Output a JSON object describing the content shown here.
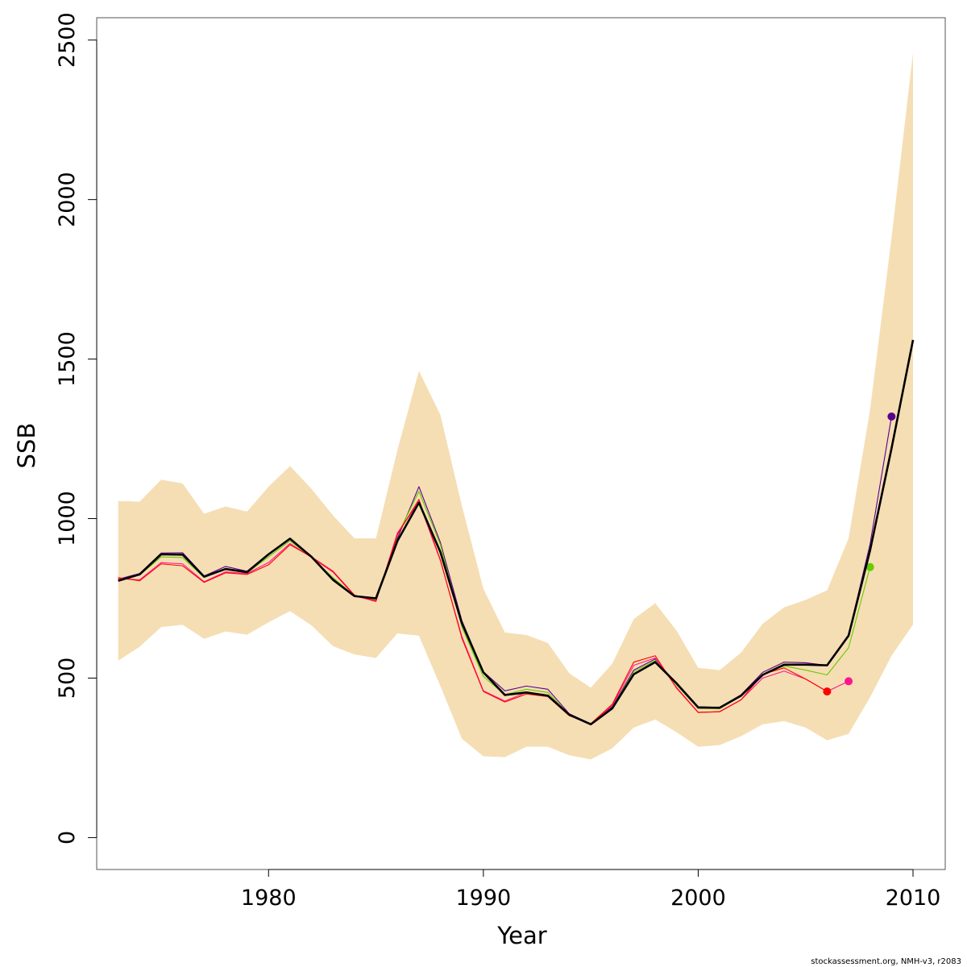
{
  "chart_data": {
    "type": "line",
    "xlabel": "Year",
    "ylabel": "SSB",
    "xlim": [
      1972,
      2011.5
    ],
    "ylim": [
      -100,
      2570
    ],
    "x_ticks": [
      1980,
      1990,
      2000,
      2010
    ],
    "y_ticks": [
      0,
      500,
      1000,
      1500,
      2000,
      2500
    ],
    "credit": "stockassessment.org, NMH-v3, r2083",
    "colors": {
      "band": "#F5DEB3",
      "main": "#000000",
      "peel_2009": "#5A0090",
      "peel_2008": "#66CC00",
      "peel_2007": "#FF1493",
      "peel_2006": "#FF0000"
    },
    "band": {
      "x": [
        1973,
        1974,
        1975,
        1976,
        1977,
        1978,
        1979,
        1980,
        1981,
        1982,
        1983,
        1984,
        1985,
        1986,
        1987,
        1988,
        1989,
        1990,
        1991,
        1992,
        1993,
        1994,
        1995,
        1996,
        1997,
        1998,
        1999,
        2000,
        2001,
        2002,
        2003,
        2004,
        2005,
        2006,
        2007,
        2008,
        2009,
        2010
      ],
      "upper": [
        1055,
        1053,
        1122,
        1110,
        1015,
        1038,
        1022,
        1100,
        1165,
        1093,
        1010,
        938,
        938,
        1215,
        1463,
        1325,
        1040,
        780,
        643,
        635,
        610,
        515,
        470,
        545,
        685,
        735,
        648,
        532,
        525,
        580,
        670,
        722,
        745,
        775,
        938,
        1340,
        1880,
        2460
      ],
      "lower": [
        555,
        598,
        660,
        667,
        623,
        646,
        636,
        675,
        710,
        665,
        600,
        574,
        563,
        640,
        633,
        475,
        310,
        255,
        252,
        285,
        285,
        258,
        245,
        280,
        345,
        370,
        330,
        285,
        290,
        318,
        355,
        365,
        345,
        305,
        325,
        440,
        570,
        668
      ]
    },
    "series": [
      {
        "name": "",
        "role": "main",
        "x": [
          1973,
          1974,
          1975,
          1976,
          1977,
          1978,
          1979,
          1980,
          1981,
          1982,
          1983,
          1984,
          1985,
          1986,
          1987,
          1988,
          1989,
          1990,
          1991,
          1992,
          1993,
          1994,
          1995,
          1996,
          1997,
          1998,
          1999,
          2000,
          2001,
          2002,
          2003,
          2004,
          2005,
          2006,
          2007,
          2008,
          2009,
          2010
        ],
        "values": [
          805,
          825,
          888,
          887,
          818,
          842,
          832,
          888,
          937,
          880,
          808,
          757,
          750,
          930,
          1050,
          895,
          672,
          518,
          447,
          455,
          445,
          385,
          355,
          405,
          512,
          550,
          483,
          408,
          407,
          445,
          510,
          542,
          542,
          540,
          633,
          900,
          1220,
          1560
        ]
      },
      {
        "name": "",
        "role": "peel_2009",
        "x": [
          1973,
          1974,
          1975,
          1976,
          1977,
          1978,
          1979,
          1980,
          1981,
          1982,
          1983,
          1984,
          1985,
          1986,
          1987,
          1988,
          1989,
          1990,
          1991,
          1992,
          1993,
          1994,
          1995,
          1996,
          1997,
          1998,
          1999,
          2000,
          2001,
          2002,
          2003,
          2004,
          2005,
          2006,
          2007,
          2008,
          2009
        ],
        "values": [
          810,
          828,
          892,
          893,
          820,
          850,
          835,
          890,
          937,
          880,
          812,
          758,
          748,
          938,
          1100,
          925,
          680,
          520,
          460,
          475,
          465,
          388,
          357,
          410,
          525,
          560,
          480,
          410,
          408,
          448,
          518,
          550,
          548,
          540,
          635,
          920,
          1320
        ],
        "end_point": true
      },
      {
        "name": "",
        "role": "peel_2008",
        "x": [
          1973,
          1974,
          1975,
          1976,
          1977,
          1978,
          1979,
          1980,
          1981,
          1982,
          1983,
          1984,
          1985,
          1986,
          1987,
          1988,
          1989,
          1990,
          1991,
          1992,
          1993,
          1994,
          1995,
          1996,
          1997,
          1998,
          1999,
          2000,
          2001,
          2002,
          2003,
          2004,
          2005,
          2006,
          2007,
          2008
        ],
        "values": [
          808,
          823,
          880,
          878,
          815,
          843,
          830,
          880,
          930,
          878,
          815,
          758,
          745,
          948,
          1085,
          918,
          660,
          505,
          448,
          465,
          455,
          385,
          354,
          408,
          520,
          555,
          478,
          405,
          404,
          445,
          512,
          538,
          525,
          510,
          595,
          848
        ],
        "end_point": true
      },
      {
        "name": "",
        "role": "peel_2007",
        "x": [
          1973,
          1974,
          1975,
          1976,
          1977,
          1978,
          1979,
          1980,
          1981,
          1982,
          1983,
          1984,
          1985,
          1986,
          1987,
          1988,
          1989,
          1990,
          1991,
          1992,
          1993,
          1994,
          1995,
          1996,
          1997,
          1998,
          1999,
          2000,
          2001,
          2002,
          2003,
          2004,
          2005,
          2006,
          2007
        ],
        "values": [
          812,
          808,
          862,
          858,
          802,
          833,
          828,
          862,
          922,
          878,
          832,
          758,
          740,
          955,
          1052,
          868,
          630,
          460,
          428,
          455,
          445,
          385,
          354,
          414,
          540,
          563,
          470,
          393,
          394,
          432,
          500,
          522,
          497,
          458,
          490
        ],
        "end_point": true
      },
      {
        "name": "",
        "role": "peel_2006",
        "x": [
          1973,
          1974,
          1975,
          1976,
          1977,
          1978,
          1979,
          1980,
          1981,
          1982,
          1983,
          1984,
          1985,
          1986,
          1987,
          1988,
          1989,
          1990,
          1991,
          1992,
          1993,
          1994,
          1995,
          1996,
          1997,
          1998,
          1999,
          2000,
          2001,
          2002,
          2003,
          2004,
          2005,
          2006
        ],
        "values": [
          815,
          805,
          858,
          852,
          800,
          830,
          825,
          855,
          918,
          880,
          835,
          760,
          742,
          950,
          1060,
          870,
          625,
          458,
          425,
          450,
          442,
          382,
          357,
          418,
          550,
          570,
          468,
          392,
          395,
          432,
          512,
          532,
          497,
          458
        ],
        "end_point": true
      }
    ]
  }
}
